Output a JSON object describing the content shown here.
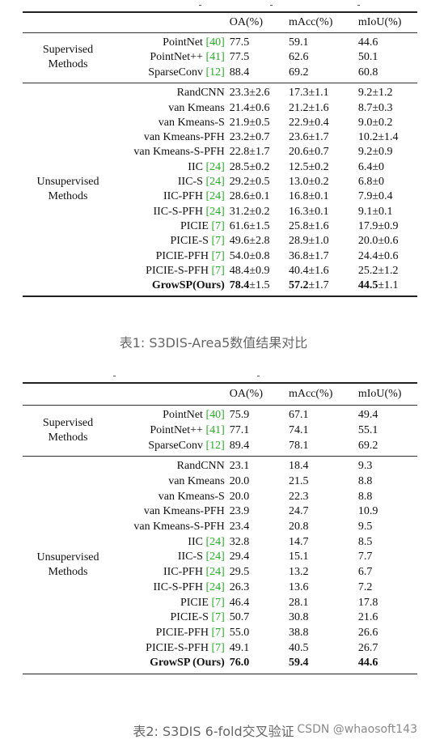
{
  "table1": {
    "columns": [
      "OA(%)",
      "mAcc(%)",
      "mIoU(%)"
    ],
    "supervised": {
      "label_line1": "Supervised",
      "label_line2": "Methods",
      "rows": [
        {
          "name": "PointNet",
          "ref": "[40]",
          "oa": "77.5",
          "macc": "59.1",
          "miou": "44.6"
        },
        {
          "name": "PointNet++",
          "ref": "[41]",
          "oa": "77.5",
          "macc": "62.6",
          "miou": "50.1"
        },
        {
          "name": "SparseConv",
          "ref": "[12]",
          "oa": "88.4",
          "macc": "69.2",
          "miou": "60.8"
        }
      ]
    },
    "unsupervised": {
      "label_line1": "Unsupervised",
      "label_line2": "Methods",
      "rows": [
        {
          "name": "RandCNN",
          "ref": "",
          "oa": "23.3±2.6",
          "macc": "17.3±1.1",
          "miou": "9.2±1.2"
        },
        {
          "name": "van Kmeans",
          "ref": "",
          "oa": "21.4±0.6",
          "macc": "21.2±1.6",
          "miou": "8.7±0.3"
        },
        {
          "name": "van Kmeans-S",
          "ref": "",
          "oa": "21.9±0.5",
          "macc": "22.9±0.4",
          "miou": "9.0±0.2"
        },
        {
          "name": "van Kmeans-PFH",
          "ref": "",
          "oa": "23.2±0.7",
          "macc": "23.6±1.7",
          "miou": "10.2±1.4"
        },
        {
          "name": "van Kmeans-S-PFH",
          "ref": "",
          "oa": "22.8±1.7",
          "macc": "20.6±0.7",
          "miou": "9.2±0.9"
        },
        {
          "name": "IIC",
          "ref": "[24]",
          "oa": "28.5±0.2",
          "macc": "12.5±0.2",
          "miou": "6.4±0"
        },
        {
          "name": "IIC-S",
          "ref": "[24]",
          "oa": "29.2±0.5",
          "macc": "13.0±0.2",
          "miou": "6.8±0"
        },
        {
          "name": "IIC-PFH",
          "ref": "[24]",
          "oa": "28.6±0.1",
          "macc": "16.8±0.1",
          "miou": "7.9±0.4"
        },
        {
          "name": "IIC-S-PFH",
          "ref": "[24]",
          "oa": "31.2±0.2",
          "macc": "16.3±0.1",
          "miou": "9.1±0.1"
        },
        {
          "name": "PICIE",
          "ref": "[7]",
          "oa": "61.6±1.5",
          "macc": "25.8±1.6",
          "miou": "17.9±0.9"
        },
        {
          "name": "PICIE-S",
          "ref": "[7]",
          "oa": "49.6±2.8",
          "macc": "28.9±1.0",
          "miou": "20.0±0.6"
        },
        {
          "name": "PICIE-PFH",
          "ref": "[7]",
          "oa": "54.0±0.8",
          "macc": "36.8±1.7",
          "miou": "24.4±0.6"
        },
        {
          "name": "PICIE-S-PFH",
          "ref": "[7]",
          "oa": "48.4±0.9",
          "macc": "40.4±1.6",
          "miou": "25.2±1.2"
        }
      ],
      "highlight": {
        "name": "GrowSP(Ours)",
        "oa_main": "78.4",
        "oa_err": "±1.5",
        "macc_main": "57.2",
        "macc_err": "±1.7",
        "miou_main": "44.5",
        "miou_err": "±1.1"
      }
    },
    "caption": "表1: S3DIS-Area5数值结果对比"
  },
  "table2": {
    "columns": [
      "OA(%)",
      "mAcc(%)",
      "mIoU(%)"
    ],
    "supervised": {
      "label_line1": "Supervised",
      "label_line2": "Methods",
      "rows": [
        {
          "name": "PointNet",
          "ref": "[40]",
          "oa": "75.9",
          "macc": "67.1",
          "miou": "49.4"
        },
        {
          "name": "PointNet++",
          "ref": "[41]",
          "oa": "77.1",
          "macc": "74.1",
          "miou": "55.1"
        },
        {
          "name": "SparseConv",
          "ref": "[12]",
          "oa": "89.4",
          "macc": "78.1",
          "miou": "69.2"
        }
      ]
    },
    "unsupervised": {
      "label_line1": "Unsupervised",
      "label_line2": "Methods",
      "rows": [
        {
          "name": "RandCNN",
          "ref": "",
          "oa": "23.1",
          "macc": "18.4",
          "miou": "9.3"
        },
        {
          "name": "van Kmeans",
          "ref": "",
          "oa": "20.0",
          "macc": "21.5",
          "miou": "8.8"
        },
        {
          "name": "van Kmeans-S",
          "ref": "",
          "oa": "20.0",
          "macc": "22.3",
          "miou": "8.8"
        },
        {
          "name": "van Kmeans-PFH",
          "ref": "",
          "oa": "23.9",
          "macc": "24.7",
          "miou": "10.9"
        },
        {
          "name": "van Kmeans-S-PFH",
          "ref": "",
          "oa": "23.4",
          "macc": "20.8",
          "miou": "9.5"
        },
        {
          "name": "IIC",
          "ref": "[24]",
          "oa": "32.8",
          "macc": "14.7",
          "miou": "8.5"
        },
        {
          "name": "IIC-S",
          "ref": "[24]",
          "oa": "29.4",
          "macc": "15.1",
          "miou": "7.7"
        },
        {
          "name": "IIC-PFH",
          "ref": "[24]",
          "oa": "29.5",
          "macc": "13.2",
          "miou": "6.7"
        },
        {
          "name": "IIC-S-PFH",
          "ref": "[24]",
          "oa": "26.3",
          "macc": "13.6",
          "miou": "7.2"
        },
        {
          "name": "PICIE",
          "ref": "[7]",
          "oa": "46.4",
          "macc": "28.1",
          "miou": "17.8"
        },
        {
          "name": "PICIE-S",
          "ref": "[7]",
          "oa": "50.7",
          "macc": "30.8",
          "miou": "21.6"
        },
        {
          "name": "PICIE-PFH",
          "ref": "[7]",
          "oa": "55.0",
          "macc": "38.8",
          "miou": "26.6"
        },
        {
          "name": "PICIE-S-PFH",
          "ref": "[7]",
          "oa": "49.1",
          "macc": "40.5",
          "miou": "26.7"
        }
      ],
      "highlight": {
        "name": "GrowSP (Ours)",
        "oa_main": "76.0",
        "oa_err": "",
        "macc_main": "59.4",
        "macc_err": "",
        "miou_main": "44.6",
        "miou_err": ""
      }
    },
    "caption": "表2: S3DIS 6-fold交叉验证"
  },
  "watermark": "CSDN @whaosoft143"
}
